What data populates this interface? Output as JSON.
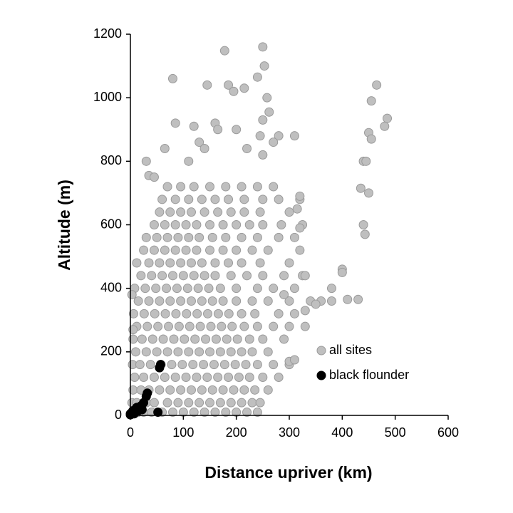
{
  "chart_data": {
    "type": "scatter",
    "x_label": "Distance upriver (km)",
    "y_label": "Altitude (m)",
    "xlim": [
      0,
      600
    ],
    "xticks": [
      0,
      100,
      200,
      300,
      400,
      500,
      600
    ],
    "ylim": [
      0,
      1200
    ],
    "yticks": [
      0,
      200,
      400,
      600,
      800,
      1000,
      1200
    ],
    "series": [
      {
        "name": "all sites",
        "color": "#bfbfbf",
        "edge": "#9a9a9a",
        "x": [
          5,
          15,
          25,
          40,
          60,
          80,
          100,
          120,
          140,
          160,
          180,
          200,
          220,
          240,
          3,
          12,
          30,
          45,
          70,
          90,
          110,
          130,
          150,
          170,
          190,
          210,
          230,
          245,
          5,
          20,
          35,
          55,
          75,
          95,
          115,
          135,
          155,
          175,
          195,
          215,
          235,
          260,
          8,
          25,
          45,
          65,
          85,
          105,
          125,
          145,
          165,
          185,
          205,
          225,
          250,
          280,
          4,
          18,
          38,
          58,
          78,
          98,
          118,
          138,
          158,
          178,
          198,
          218,
          240,
          270,
          300,
          10,
          30,
          50,
          70,
          90,
          110,
          130,
          150,
          170,
          190,
          210,
          230,
          260,
          5,
          22,
          42,
          62,
          82,
          102,
          122,
          142,
          162,
          182,
          202,
          225,
          250,
          290,
          12,
          32,
          52,
          72,
          92,
          112,
          132,
          152,
          172,
          192,
          215,
          240,
          270,
          300,
          330,
          6,
          26,
          46,
          66,
          86,
          106,
          126,
          146,
          166,
          186,
          210,
          235,
          280,
          310,
          15,
          35,
          55,
          75,
          95,
          115,
          135,
          155,
          175,
          200,
          230,
          260,
          300,
          340,
          8,
          28,
          48,
          68,
          88,
          108,
          128,
          148,
          170,
          200,
          240,
          270,
          310,
          20,
          40,
          60,
          80,
          100,
          120,
          140,
          160,
          190,
          220,
          250,
          290,
          325,
          12,
          35,
          55,
          75,
          95,
          115,
          135,
          160,
          185,
          210,
          245,
          300,
          25,
          45,
          65,
          85,
          105,
          125,
          150,
          175,
          200,
          230,
          260,
          320,
          30,
          50,
          70,
          90,
          110,
          130,
          155,
          180,
          210,
          240,
          280,
          310,
          45,
          65,
          85,
          105,
          125,
          150,
          175,
          200,
          225,
          250,
          285,
          325,
          55,
          75,
          95,
          115,
          140,
          165,
          190,
          215,
          245,
          300,
          60,
          85,
          110,
          135,
          160,
          185,
          215,
          250,
          280,
          320,
          70,
          95,
          120,
          150,
          180,
          210,
          240,
          270,
          178,
          250,
          253,
          240,
          258,
          262,
          250,
          145,
          185,
          195,
          215,
          80,
          465,
          455,
          485,
          480,
          450,
          455,
          440,
          445,
          435,
          450,
          440,
          443,
          400,
          400,
          380,
          430,
          410,
          380,
          360,
          350,
          330,
          320,
          315,
          310,
          280,
          270,
          220,
          245,
          250,
          85,
          120,
          160,
          165,
          200,
          30,
          35,
          45,
          65,
          110,
          130,
          140,
          320,
          300,
          310,
          290,
          330,
          5,
          3
        ],
        "values": [
          10,
          10,
          10,
          10,
          10,
          10,
          10,
          10,
          10,
          10,
          10,
          10,
          10,
          10,
          40,
          40,
          40,
          40,
          40,
          40,
          40,
          40,
          40,
          40,
          40,
          40,
          40,
          40,
          80,
          80,
          80,
          80,
          80,
          80,
          80,
          80,
          80,
          80,
          80,
          80,
          80,
          80,
          120,
          120,
          120,
          120,
          120,
          120,
          120,
          120,
          120,
          120,
          120,
          120,
          120,
          120,
          160,
          160,
          160,
          160,
          160,
          160,
          160,
          160,
          160,
          160,
          160,
          160,
          160,
          160,
          160,
          200,
          200,
          200,
          200,
          200,
          200,
          200,
          200,
          200,
          200,
          200,
          200,
          200,
          240,
          240,
          240,
          240,
          240,
          240,
          240,
          240,
          240,
          240,
          240,
          240,
          240,
          240,
          280,
          280,
          280,
          280,
          280,
          280,
          280,
          280,
          280,
          280,
          280,
          280,
          280,
          280,
          280,
          320,
          320,
          320,
          320,
          320,
          320,
          320,
          320,
          320,
          320,
          320,
          320,
          320,
          320,
          360,
          360,
          360,
          360,
          360,
          360,
          360,
          360,
          360,
          360,
          360,
          360,
          360,
          360,
          400,
          400,
          400,
          400,
          400,
          400,
          400,
          400,
          400,
          400,
          400,
          400,
          400,
          440,
          440,
          440,
          440,
          440,
          440,
          440,
          440,
          440,
          440,
          440,
          440,
          440,
          480,
          480,
          480,
          480,
          480,
          480,
          480,
          480,
          480,
          480,
          480,
          480,
          520,
          520,
          520,
          520,
          520,
          520,
          520,
          520,
          520,
          520,
          520,
          520,
          560,
          560,
          560,
          560,
          560,
          560,
          560,
          560,
          560,
          560,
          560,
          560,
          600,
          600,
          600,
          600,
          600,
          600,
          600,
          600,
          600,
          600,
          600,
          600,
          640,
          640,
          640,
          640,
          640,
          640,
          640,
          640,
          640,
          640,
          680,
          680,
          680,
          680,
          680,
          680,
          680,
          680,
          680,
          680,
          720,
          720,
          720,
          720,
          720,
          720,
          720,
          720,
          1148,
          1160,
          1100,
          1065,
          1000,
          955,
          930,
          1040,
          1040,
          1020,
          1030,
          1060,
          1040,
          990,
          935,
          910,
          890,
          870,
          800,
          800,
          715,
          700,
          600,
          570,
          460,
          450,
          400,
          365,
          365,
          360,
          360,
          350,
          330,
          690,
          650,
          880,
          880,
          860,
          840,
          880,
          820,
          920,
          910,
          920,
          900,
          900,
          800,
          755,
          750,
          840,
          800,
          860,
          840,
          590,
          170,
          175,
          380,
          440,
          270,
          380
        ]
      },
      {
        "name": "black flounder",
        "color": "#000000",
        "edge": "#000000",
        "x": [
          0,
          3,
          5,
          8,
          10,
          12,
          15,
          18,
          20,
          25,
          30,
          32,
          52,
          55,
          57,
          0,
          7,
          22
        ],
        "values": [
          5,
          10,
          15,
          12,
          20,
          25,
          15,
          20,
          30,
          40,
          60,
          70,
          10,
          150,
          160,
          2,
          5,
          18
        ]
      }
    ]
  }
}
